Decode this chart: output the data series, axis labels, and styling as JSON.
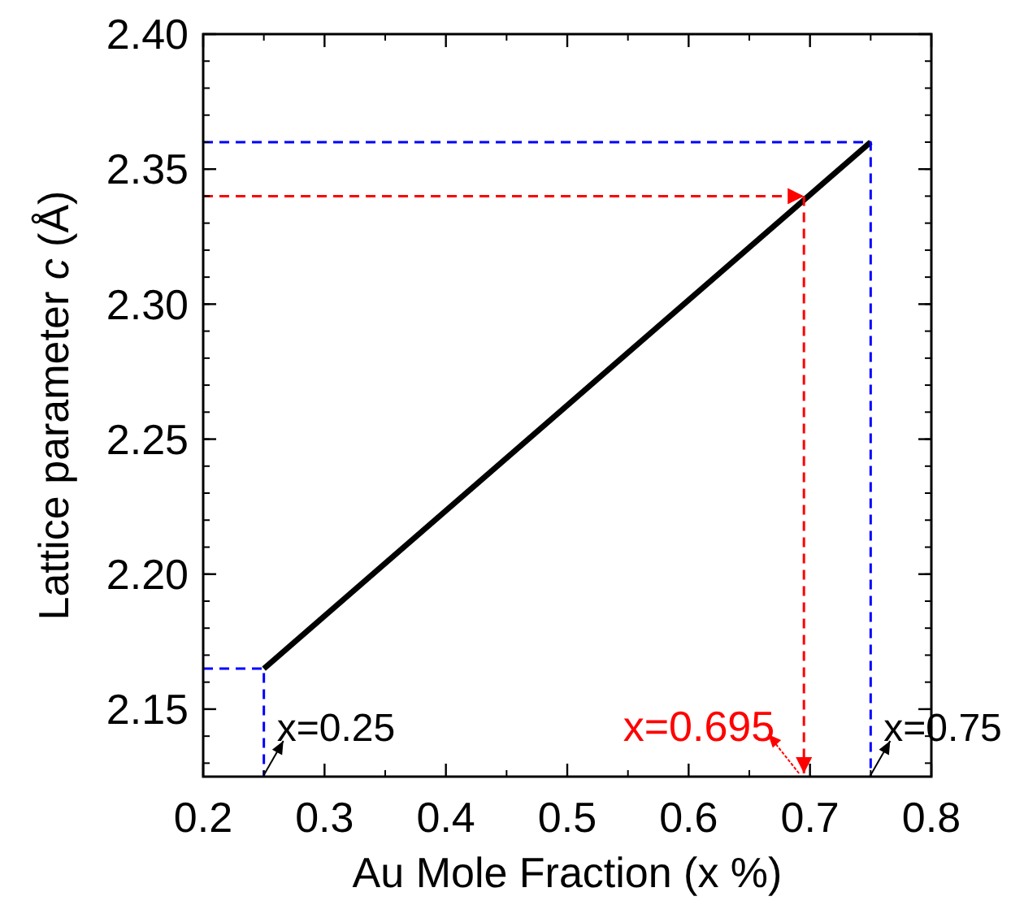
{
  "chart_data": {
    "type": "line",
    "xlabel": "Au Mole Fraction (x %)",
    "ylabel": "Lattice parameter c (Å)",
    "xlim": [
      0.2,
      0.8
    ],
    "xticks": [
      0.2,
      0.3,
      0.4,
      0.5,
      0.6,
      0.7,
      0.8
    ],
    "ylim": [
      2.125,
      2.4
    ],
    "yticks": [
      {
        "value": 2.15,
        "label": "2.15"
      },
      {
        "value": 2.2,
        "label": "2.20"
      },
      {
        "value": 2.25,
        "label": "2.25"
      },
      {
        "value": 2.3,
        "label": "2.30"
      },
      {
        "value": 2.35,
        "label": "2.35"
      },
      {
        "value": 2.4,
        "label": "2.40"
      }
    ],
    "grid": false,
    "series": [
      {
        "color": "#000000",
        "x": [
          0.25,
          0.75
        ],
        "values": [
          2.165,
          2.36
        ],
        "line_style": "solid"
      },
      {
        "color": "#0000ff",
        "x": [
          0.2,
          0.25,
          0.25
        ],
        "values": [
          2.165,
          2.165,
          2.125
        ],
        "line_style": "dashed"
      },
      {
        "color": "#0000ff",
        "x": [
          0.2,
          0.75,
          0.75
        ],
        "values": [
          2.36,
          2.36,
          2.125
        ],
        "line_style": "dashed"
      }
    ],
    "ref_lines": [
      {
        "axis": "y",
        "value": 2.34,
        "color": "#ff0000",
        "line_style": "dashed"
      },
      {
        "axis": "x",
        "value": 0.695,
        "label": "x=0.695",
        "color": "#ff0000",
        "line_style": "dashed"
      }
    ],
    "annotations": [
      {
        "text": "x=0.25",
        "x": 0.25,
        "y": 2.125
      },
      {
        "text": "x=0.75",
        "x": 0.75,
        "y": 2.125
      }
    ]
  }
}
